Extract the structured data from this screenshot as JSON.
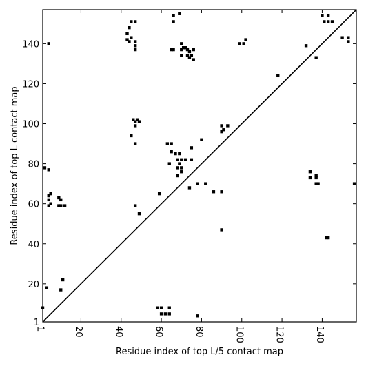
{
  "chart_data": {
    "type": "scatter",
    "title": "",
    "xlabel": "Residue index of top L/5 contact map",
    "ylabel": "Residue index of top L contact map",
    "xlim": [
      1,
      157
    ],
    "ylim": [
      1,
      157
    ],
    "x_ticks": [
      1,
      20,
      40,
      60,
      80,
      100,
      120,
      140
    ],
    "y_ticks": [
      1,
      20,
      40,
      60,
      80,
      100,
      120,
      140
    ],
    "x_tick_labels": [
      "1",
      "20",
      "40",
      "60",
      "80",
      "100",
      "120",
      "140"
    ],
    "y_tick_labels": [
      "1",
      "20",
      "40",
      "60",
      "80",
      "100",
      "120",
      "140"
    ],
    "grid": false,
    "diagonal": true,
    "marker_color": "#000000",
    "points": [
      [
        4,
        140
      ],
      [
        43,
        145
      ],
      [
        43,
        142
      ],
      [
        44,
        141
      ],
      [
        45,
        143
      ],
      [
        44,
        148
      ],
      [
        45,
        151
      ],
      [
        47,
        141
      ],
      [
        47,
        139
      ],
      [
        47,
        137
      ],
      [
        47,
        151
      ],
      [
        59,
        65
      ],
      [
        65,
        137
      ],
      [
        66,
        137
      ],
      [
        66,
        151
      ],
      [
        66,
        154
      ],
      [
        69,
        155
      ],
      [
        70,
        140
      ],
      [
        70,
        137
      ],
      [
        70,
        134
      ],
      [
        71,
        138
      ],
      [
        72,
        138
      ],
      [
        73,
        137
      ],
      [
        73,
        134
      ],
      [
        74,
        136
      ],
      [
        74,
        133
      ],
      [
        75,
        134
      ],
      [
        76,
        137
      ],
      [
        76,
        132
      ],
      [
        99,
        140
      ],
      [
        101,
        140
      ],
      [
        102,
        142
      ],
      [
        118,
        124
      ],
      [
        132,
        139
      ],
      [
        137,
        133
      ],
      [
        140,
        154
      ],
      [
        141,
        151
      ],
      [
        143,
        154
      ],
      [
        143,
        151
      ],
      [
        145,
        151
      ],
      [
        150,
        143
      ],
      [
        153,
        143
      ],
      [
        153,
        141
      ],
      [
        46,
        102
      ],
      [
        47,
        101
      ],
      [
        48,
        102
      ],
      [
        49,
        101
      ],
      [
        47,
        99
      ],
      [
        45,
        94
      ],
      [
        47,
        90
      ],
      [
        63,
        90
      ],
      [
        65,
        90
      ],
      [
        65,
        86
      ],
      [
        67,
        85
      ],
      [
        69,
        85
      ],
      [
        68,
        82
      ],
      [
        69,
        80
      ],
      [
        70,
        82
      ],
      [
        72,
        82
      ],
      [
        75,
        82
      ],
      [
        75,
        88
      ],
      [
        80,
        92
      ],
      [
        64,
        80
      ],
      [
        68,
        78
      ],
      [
        70,
        78
      ],
      [
        70,
        76
      ],
      [
        68,
        74
      ],
      [
        74,
        68
      ],
      [
        78,
        70
      ],
      [
        82,
        70
      ],
      [
        86,
        66
      ],
      [
        90,
        66
      ],
      [
        90,
        47
      ],
      [
        90,
        99
      ],
      [
        91,
        97
      ],
      [
        90,
        96
      ],
      [
        93,
        99
      ],
      [
        134,
        76
      ],
      [
        134,
        73
      ],
      [
        137,
        74
      ],
      [
        137,
        73
      ],
      [
        138,
        70
      ],
      [
        137,
        70
      ],
      [
        156,
        70
      ],
      [
        2,
        78
      ],
      [
        4,
        77
      ],
      [
        4,
        64
      ],
      [
        5,
        65
      ],
      [
        4,
        62
      ],
      [
        5,
        60
      ],
      [
        4,
        59
      ],
      [
        9,
        63
      ],
      [
        10,
        62
      ],
      [
        9,
        59
      ],
      [
        10,
        59
      ],
      [
        12,
        59
      ],
      [
        47,
        59
      ],
      [
        49,
        55
      ],
      [
        142,
        43
      ],
      [
        143,
        43
      ],
      [
        3,
        18
      ],
      [
        11,
        22
      ],
      [
        10,
        17
      ],
      [
        1,
        8
      ],
      [
        58,
        8
      ],
      [
        60,
        8
      ],
      [
        64,
        8
      ],
      [
        60,
        5
      ],
      [
        62,
        5
      ],
      [
        64,
        5
      ],
      [
        78,
        4
      ]
    ]
  }
}
